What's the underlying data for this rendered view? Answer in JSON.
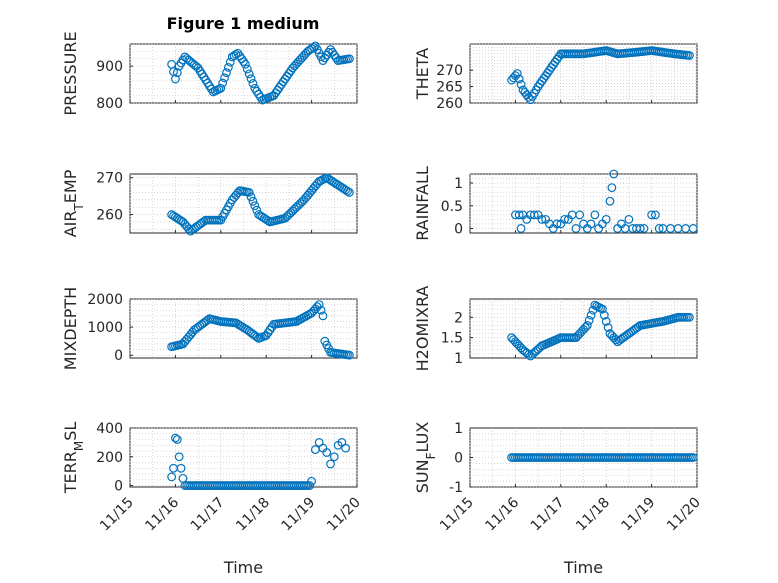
{
  "figure_title": "Figure 1 medium",
  "marker_color": "#0072bd",
  "chart_data": [
    {
      "type": "scatter",
      "ylabel": "PRESSURE",
      "title": "Figure 1 medium",
      "xlim": [
        "11/15",
        "11/20"
      ],
      "ylim": [
        800,
        960
      ],
      "yticks": [
        800,
        900
      ],
      "x_tick_labels_shown": false,
      "xticks": [
        "11/15",
        "11/16",
        "11/17",
        "11/18",
        "11/19",
        "11/20"
      ],
      "x": [
        "11/15",
        "11/20"
      ],
      "knots": [
        [
          "11/15 22:00",
          905
        ],
        [
          "11/16 00:00",
          865
        ],
        [
          "11/16 02:00",
          900
        ],
        [
          "11/16 05:00",
          925
        ],
        [
          "11/16 12:00",
          895
        ],
        [
          "11/16 20:00",
          830
        ],
        [
          "11/17 00:00",
          840
        ],
        [
          "11/17 06:00",
          925
        ],
        [
          "11/17 09:00",
          935
        ],
        [
          "11/17 13:00",
          905
        ],
        [
          "11/17 18:00",
          840
        ],
        [
          "11/17 22:00",
          808
        ],
        [
          "11/18 04:00",
          820
        ],
        [
          "11/18 14:00",
          895
        ],
        [
          "11/18 22:00",
          940
        ],
        [
          "11/19 02:00",
          955
        ],
        [
          "11/19 06:00",
          915
        ],
        [
          "11/19 10:00",
          945
        ],
        [
          "11/19 14:00",
          915
        ],
        [
          "11/19 20:00",
          920
        ]
      ],
      "grid": true
    },
    {
      "type": "scatter",
      "ylabel": "THETA",
      "ylim": [
        260,
        278
      ],
      "yticks": [
        260,
        265,
        270
      ],
      "x_tick_labels_shown": false,
      "xticks": [
        "11/15",
        "11/16",
        "11/17",
        "11/18",
        "11/19",
        "11/20"
      ],
      "knots": [
        [
          "11/15 22:00",
          267
        ],
        [
          "11/16 01:00",
          269
        ],
        [
          "11/16 04:00",
          264
        ],
        [
          "11/16 08:00",
          261
        ],
        [
          "11/16 12:00",
          265
        ],
        [
          "11/16 18:00",
          270
        ],
        [
          "11/17 00:00",
          275
        ],
        [
          "11/17 12:00",
          275
        ],
        [
          "11/18 00:00",
          276
        ],
        [
          "11/18 06:00",
          275
        ],
        [
          "11/18 16:00",
          275.5
        ],
        [
          "11/19 00:00",
          276
        ],
        [
          "11/19 12:00",
          275
        ],
        [
          "11/19 20:00",
          274.5
        ]
      ],
      "grid": true
    },
    {
      "type": "scatter",
      "ylabel": "AIR_TEMP",
      "ylim": [
        255,
        271
      ],
      "yticks": [
        260,
        270
      ],
      "x_tick_labels_shown": false,
      "xticks": [
        "11/15",
        "11/16",
        "11/17",
        "11/18",
        "11/19",
        "11/20"
      ],
      "knots": [
        [
          "11/15 22:00",
          260
        ],
        [
          "11/16 04:00",
          258
        ],
        [
          "11/16 08:00",
          255.5
        ],
        [
          "11/16 16:00",
          258.5
        ],
        [
          "11/17 00:00",
          258.5
        ],
        [
          "11/17 06:00",
          264
        ],
        [
          "11/17 10:00",
          266.5
        ],
        [
          "11/17 15:00",
          266
        ],
        [
          "11/17 20:00",
          260
        ],
        [
          "11/18 02:00",
          258
        ],
        [
          "11/18 10:00",
          259
        ],
        [
          "11/18 20:00",
          264
        ],
        [
          "11/19 04:00",
          269
        ],
        [
          "11/19 08:00",
          270
        ],
        [
          "11/19 14:00",
          268
        ],
        [
          "11/19 20:00",
          266
        ]
      ],
      "grid": true
    },
    {
      "type": "scatter",
      "ylabel": "RAINFALL",
      "ylim": [
        -0.1,
        1.2
      ],
      "yticks": [
        0,
        0.5,
        1
      ],
      "x_tick_labels_shown": false,
      "xticks": [
        "11/15",
        "11/16",
        "11/17",
        "11/18",
        "11/19",
        "11/20"
      ],
      "points": [
        [
          "11/16 00:00",
          0.3
        ],
        [
          "11/16 02:00",
          0.3
        ],
        [
          "11/16 03:00",
          0
        ],
        [
          "11/16 04:00",
          0.3
        ],
        [
          "11/16 06:00",
          0.2
        ],
        [
          "11/16 08:00",
          0.3
        ],
        [
          "11/16 10:00",
          0.3
        ],
        [
          "11/16 12:00",
          0.3
        ],
        [
          "11/16 14:00",
          0.2
        ],
        [
          "11/16 16:00",
          0.2
        ],
        [
          "11/16 18:00",
          0.1
        ],
        [
          "11/16 20:00",
          0
        ],
        [
          "11/16 22:00",
          0.1
        ],
        [
          "11/17 00:00",
          0.1
        ],
        [
          "11/17 02:00",
          0.2
        ],
        [
          "11/17 04:00",
          0.2
        ],
        [
          "11/17 06:00",
          0.3
        ],
        [
          "11/17 08:00",
          0
        ],
        [
          "11/17 10:00",
          0.3
        ],
        [
          "11/17 12:00",
          0.1
        ],
        [
          "11/17 14:00",
          0
        ],
        [
          "11/17 16:00",
          0.1
        ],
        [
          "11/17 18:00",
          0.3
        ],
        [
          "11/17 20:00",
          0
        ],
        [
          "11/17 22:00",
          0.1
        ],
        [
          "11/18 00:00",
          0.2
        ],
        [
          "11/18 02:00",
          0.6
        ],
        [
          "11/18 03:00",
          0.9
        ],
        [
          "11/18 04:00",
          1.2
        ],
        [
          "11/18 06:00",
          0
        ],
        [
          "11/18 08:00",
          0.1
        ],
        [
          "11/18 10:00",
          0
        ],
        [
          "11/18 12:00",
          0.2
        ],
        [
          "11/18 14:00",
          0
        ],
        [
          "11/18 16:00",
          0
        ],
        [
          "11/18 18:00",
          0
        ],
        [
          "11/18 20:00",
          0
        ],
        [
          "11/19 00:00",
          0.3
        ],
        [
          "11/19 02:00",
          0.3
        ],
        [
          "11/19 04:00",
          0
        ],
        [
          "11/19 06:00",
          0
        ],
        [
          "11/19 10:00",
          0
        ],
        [
          "11/19 14:00",
          0
        ],
        [
          "11/19 18:00",
          0
        ],
        [
          "11/19 22:00",
          0
        ]
      ],
      "grid": true
    },
    {
      "type": "scatter",
      "ylabel": "MIXDEPTH",
      "ylim": [
        -100,
        2000
      ],
      "yticks": [
        0,
        1000,
        2000
      ],
      "x_tick_labels_shown": false,
      "xticks": [
        "11/15",
        "11/16",
        "11/17",
        "11/18",
        "11/19",
        "11/20"
      ],
      "knots": [
        [
          "11/15 22:00",
          300
        ],
        [
          "11/16 04:00",
          400
        ],
        [
          "11/16 10:00",
          900
        ],
        [
          "11/16 18:00",
          1300
        ],
        [
          "11/17 00:00",
          1200
        ],
        [
          "11/17 08:00",
          1150
        ],
        [
          "11/17 14:00",
          900
        ],
        [
          "11/17 20:00",
          600
        ],
        [
          "11/18 00:00",
          700
        ],
        [
          "11/18 04:00",
          1100
        ],
        [
          "11/18 16:00",
          1200
        ],
        [
          "11/19 00:00",
          1500
        ],
        [
          "11/19 04:00",
          1800
        ],
        [
          "11/19 06:00",
          1400
        ],
        [
          "11/19 07:00",
          500
        ],
        [
          "11/19 10:00",
          100
        ],
        [
          "11/19 20:00",
          0
        ]
      ],
      "grid": true
    },
    {
      "type": "scatter",
      "ylabel": "H2OMIXRA",
      "ylim": [
        1,
        2.45
      ],
      "yticks": [
        1,
        1.5,
        2
      ],
      "x_tick_labels_shown": false,
      "xticks": [
        "11/15",
        "11/16",
        "11/17",
        "11/18",
        "11/19",
        "11/20"
      ],
      "knots": [
        [
          "11/15 22:00",
          1.5
        ],
        [
          "11/16 04:00",
          1.2
        ],
        [
          "11/16 08:00",
          1.05
        ],
        [
          "11/16 14:00",
          1.3
        ],
        [
          "11/17 00:00",
          1.5
        ],
        [
          "11/17 08:00",
          1.5
        ],
        [
          "11/17 14:00",
          1.8
        ],
        [
          "11/17 18:00",
          2.3
        ],
        [
          "11/17 22:00",
          2.2
        ],
        [
          "11/18 02:00",
          1.6
        ],
        [
          "11/18 06:00",
          1.4
        ],
        [
          "11/18 12:00",
          1.6
        ],
        [
          "11/18 18:00",
          1.8
        ],
        [
          "11/19 06:00",
          1.9
        ],
        [
          "11/19 14:00",
          2.0
        ],
        [
          "11/19 20:00",
          2.0
        ]
      ],
      "grid": true
    },
    {
      "type": "scatter",
      "ylabel": "TERR_MSL",
      "ylim": [
        -10,
        400
      ],
      "yticks": [
        0,
        200,
        400
      ],
      "x_tick_labels_shown": true,
      "xticks": [
        "11/15",
        "11/16",
        "11/17",
        "11/18",
        "11/19",
        "11/20"
      ],
      "xlabel": "Time",
      "points": [
        [
          "11/15 22:00",
          60
        ],
        [
          "11/15 23:00",
          120
        ],
        [
          "11/16 00:00",
          330
        ],
        [
          "11/16 01:00",
          320
        ],
        [
          "11/16 02:00",
          200
        ],
        [
          "11/16 03:00",
          120
        ],
        [
          "11/16 04:00",
          50
        ],
        [
          "11/19 00:00",
          30
        ],
        [
          "11/19 02:00",
          250
        ],
        [
          "11/19 04:00",
          300
        ],
        [
          "11/19 06:00",
          260
        ],
        [
          "11/19 08:00",
          230
        ],
        [
          "11/19 10:00",
          150
        ],
        [
          "11/19 12:00",
          200
        ],
        [
          "11/19 14:00",
          280
        ],
        [
          "11/19 16:00",
          300
        ],
        [
          "11/19 18:00",
          260
        ]
      ],
      "baseline": {
        "from": "11/16 05:00",
        "to": "11/18 23:00",
        "value": 0
      },
      "grid": true
    },
    {
      "type": "scatter",
      "ylabel": "SUN_FLUX",
      "ylim": [
        -1,
        1
      ],
      "yticks": [
        -1,
        0,
        1
      ],
      "x_tick_labels_shown": true,
      "xticks": [
        "11/15",
        "11/16",
        "11/17",
        "11/18",
        "11/19",
        "11/20"
      ],
      "xlabel": "Time",
      "baseline": {
        "from": "11/15 22:00",
        "to": "11/19 22:00",
        "value": 0
      },
      "grid": true
    }
  ]
}
